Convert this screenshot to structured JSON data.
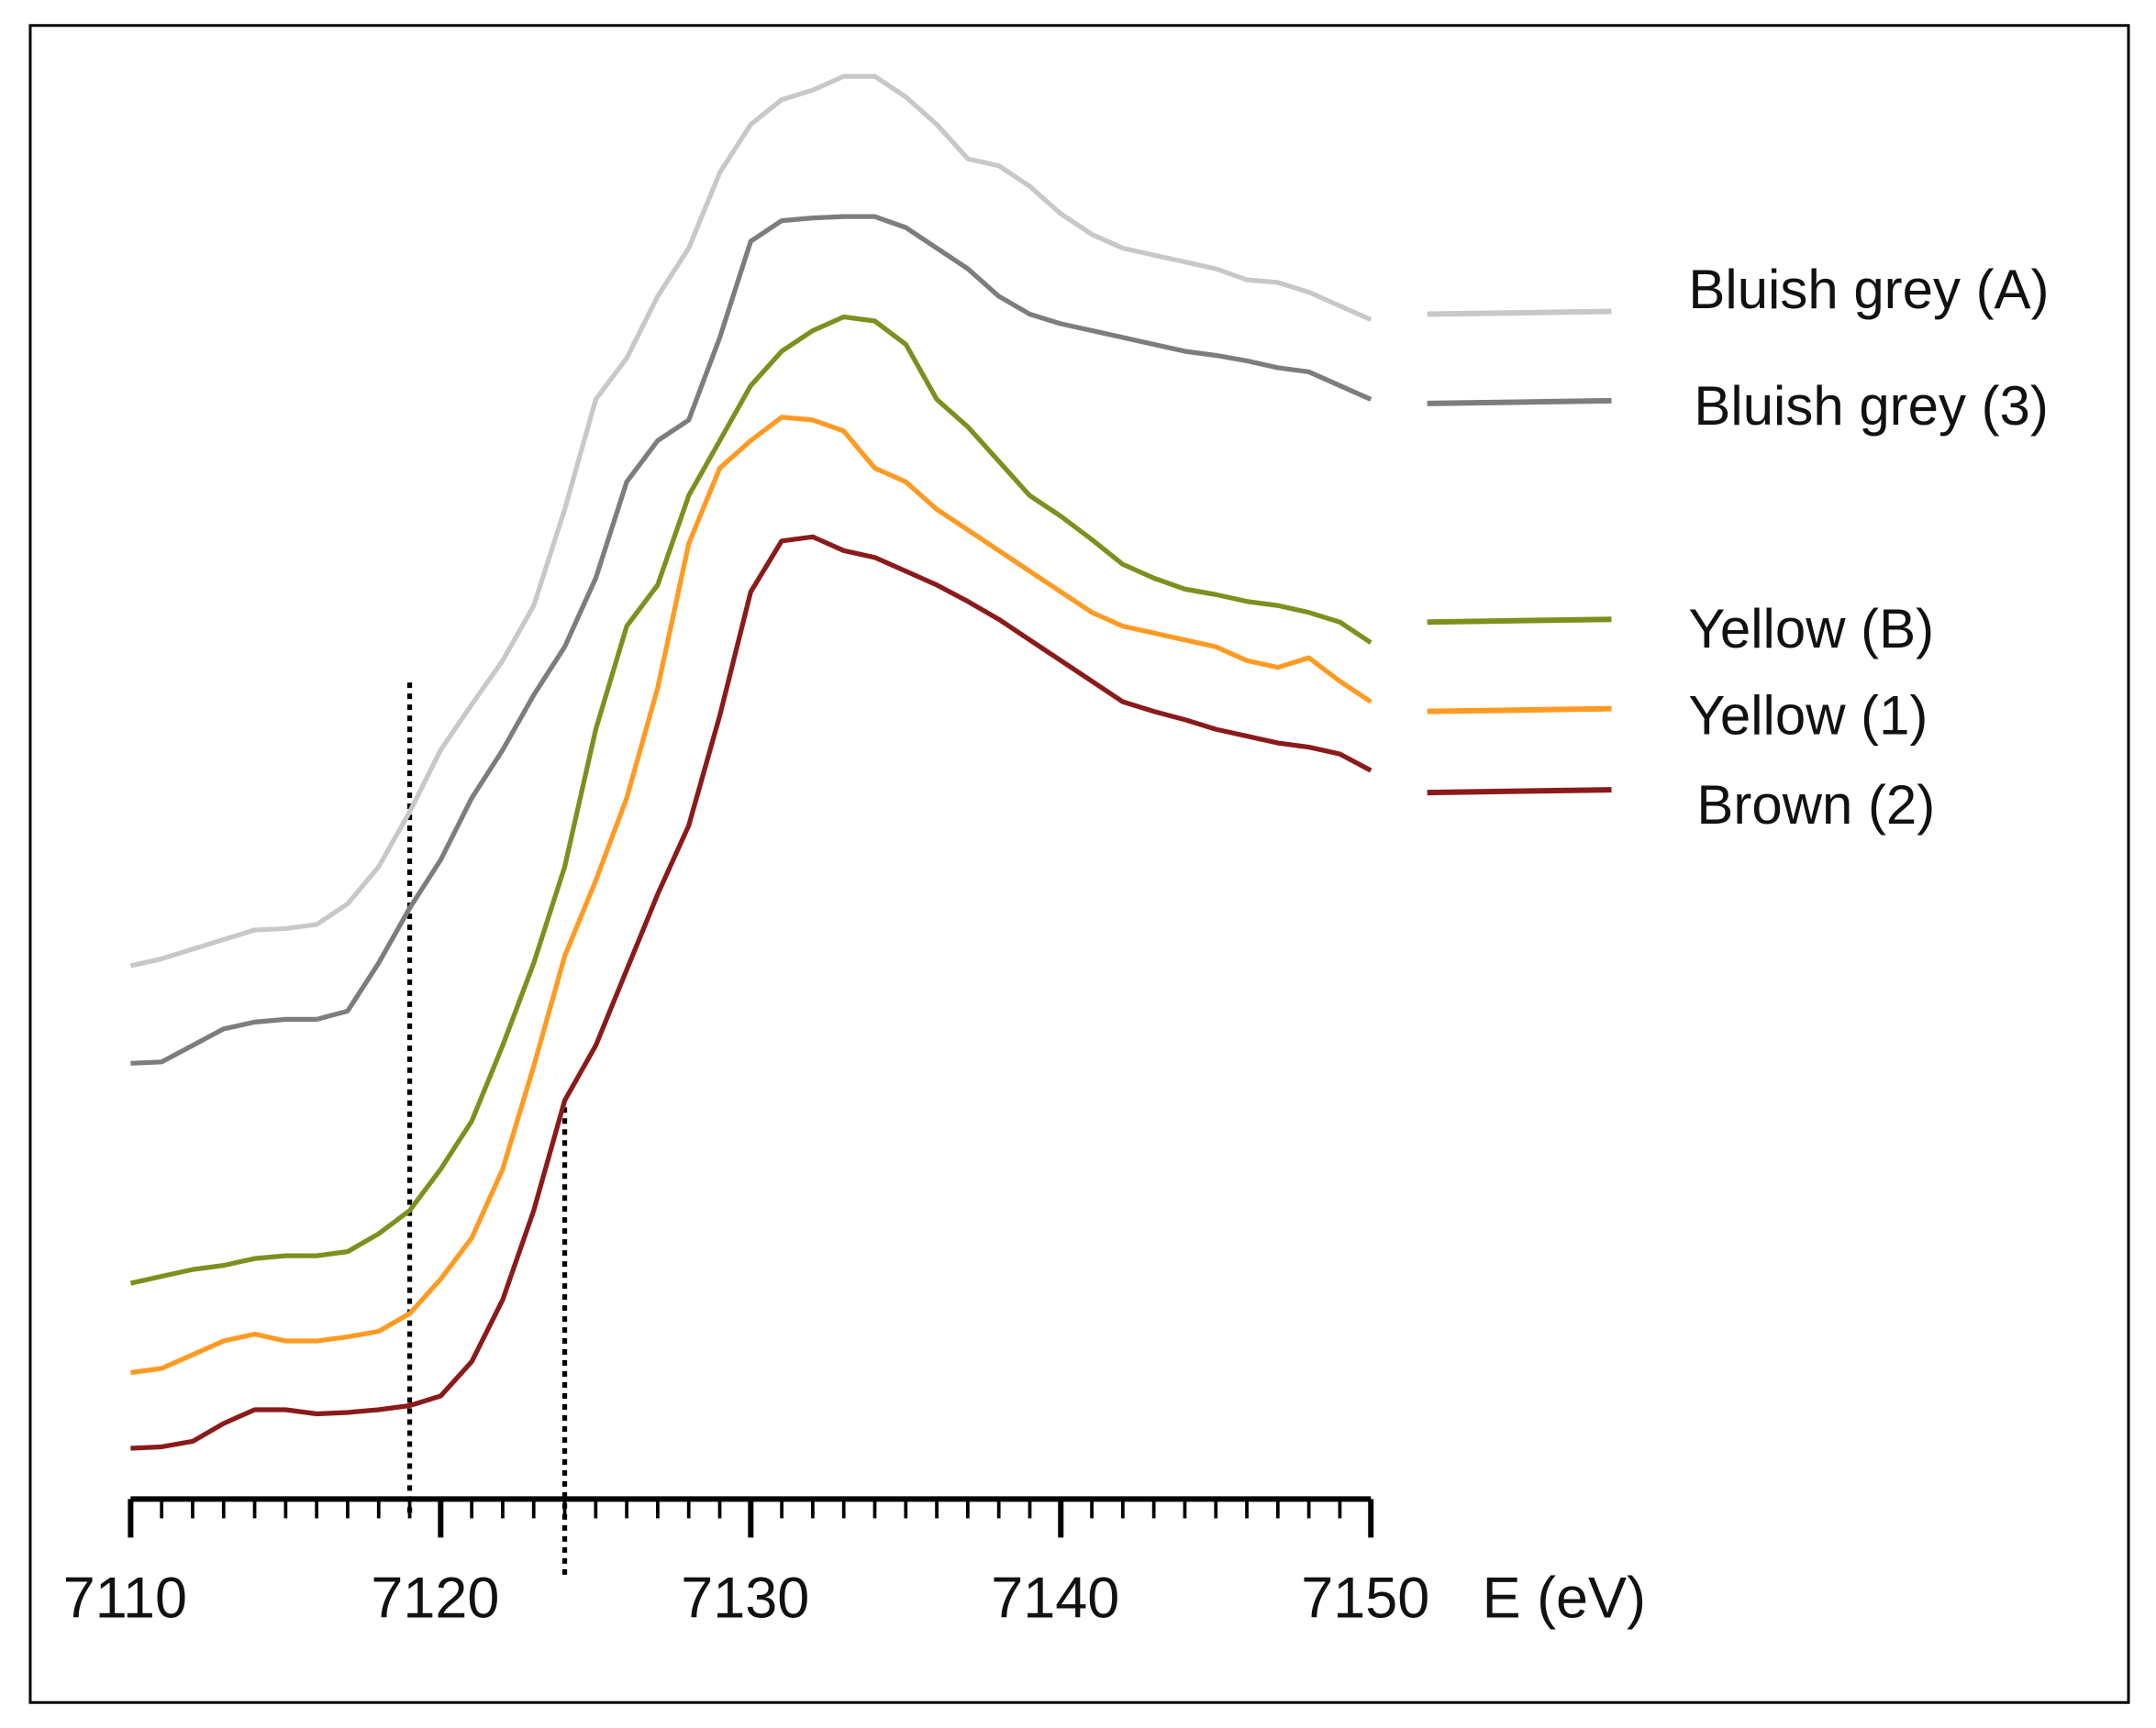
{
  "chart_data": {
    "type": "line",
    "x_label": "E (eV)",
    "x": [
      7110,
      7111,
      7112,
      7113,
      7114,
      7115,
      7116,
      7117,
      7118,
      7119,
      7120,
      7121,
      7122,
      7123,
      7124,
      7125,
      7126,
      7127,
      7128,
      7129,
      7130,
      7131,
      7132,
      7133,
      7134,
      7135,
      7136,
      7137,
      7138,
      7139,
      7140,
      7141,
      7142,
      7143,
      7144,
      7145,
      7146,
      7147,
      7148,
      7149,
      7150
    ],
    "xlim": [
      7110,
      7150
    ],
    "xticks": [
      7110,
      7120,
      7130,
      7140,
      7150
    ],
    "xminorticks": [
      7111,
      7112,
      7113,
      7114,
      7115,
      7116,
      7117,
      7118,
      7119,
      7121,
      7122,
      7123,
      7124,
      7125,
      7126,
      7127,
      7128,
      7129,
      7131,
      7132,
      7133,
      7134,
      7135,
      7136,
      7137,
      7138,
      7139,
      7141,
      7142,
      7143,
      7144,
      7145,
      7146,
      7147,
      7148,
      7149
    ],
    "ylim": [
      -6,
      105
    ],
    "series": [
      {
        "name": "Bluish grey (A)",
        "color": "#c8c8c8",
        "values": [
          38.8,
          39.3,
          40,
          40.7,
          41.4,
          41.5,
          41.8,
          43.3,
          46,
          50,
          54.5,
          57.8,
          61,
          65,
          72,
          80,
          83,
          87.5,
          91,
          96.5,
          100,
          101.8,
          102.5,
          103.5,
          103.5,
          102,
          100,
          97.5,
          97,
          95.5,
          93.5,
          92,
          91,
          90.5,
          90,
          89.5,
          88.7,
          88.5,
          87.8,
          86.8,
          85.8
        ]
      },
      {
        "name": "Bluish grey (3)",
        "color": "#7d7d7d",
        "values": [
          31.7,
          31.8,
          33,
          34.2,
          34.7,
          34.9,
          34.9,
          35.5,
          39,
          43,
          46.5,
          51,
          54.5,
          58.5,
          62,
          67,
          74,
          77,
          78.5,
          84.5,
          91.5,
          93,
          93.2,
          93.3,
          93.3,
          92.5,
          91,
          89.5,
          87.5,
          86.2,
          85.5,
          85,
          84.5,
          84,
          83.5,
          83.2,
          82.8,
          82.3,
          82,
          81,
          80
        ]
      },
      {
        "name": "Yellow (B)",
        "color": "#7f8f1e",
        "values": [
          15.7,
          16.2,
          16.7,
          17,
          17.5,
          17.7,
          17.7,
          18,
          19.3,
          21,
          24,
          27.5,
          33,
          39,
          46,
          56,
          63.5,
          66.5,
          73,
          77,
          81,
          83.5,
          85,
          86,
          85.7,
          84,
          80,
          78,
          75.5,
          73,
          71.5,
          69.8,
          68,
          67,
          66.2,
          65.8,
          65.3,
          65,
          64.5,
          63.8,
          62.3
        ]
      },
      {
        "name": "Yellow (1)",
        "color": "#ff9a22",
        "values": [
          9.2,
          9.5,
          10.5,
          11.5,
          12,
          11.5,
          11.5,
          11.8,
          12.2,
          13.5,
          16,
          19,
          24,
          31.5,
          39.5,
          45,
          51,
          59,
          69.5,
          75,
          77,
          78.7,
          78.5,
          77.7,
          75,
          74,
          72,
          70.5,
          69,
          67.5,
          66,
          64.5,
          63.5,
          63,
          62.5,
          62,
          61,
          60.5,
          61.2,
          59.5,
          58
        ]
      },
      {
        "name": "Brown (2)",
        "color": "#8b1a1a",
        "values": [
          3.7,
          3.8,
          4.2,
          5.5,
          6.5,
          6.5,
          6.2,
          6.3,
          6.5,
          6.8,
          7.5,
          10,
          14.5,
          21,
          29,
          33,
          38.5,
          44,
          49,
          57,
          66,
          69.7,
          70,
          69,
          68.5,
          67.5,
          66.5,
          65.3,
          64,
          62.5,
          61,
          59.5,
          58,
          57.3,
          56.7,
          56,
          55.5,
          55,
          54.7,
          54.2,
          53
        ]
      }
    ],
    "vlines": [
      {
        "x": 7119,
        "y": [
          -1,
          59.7
        ]
      },
      {
        "x": 7124,
        "y": [
          -5.5,
          28.7
        ]
      }
    ]
  }
}
